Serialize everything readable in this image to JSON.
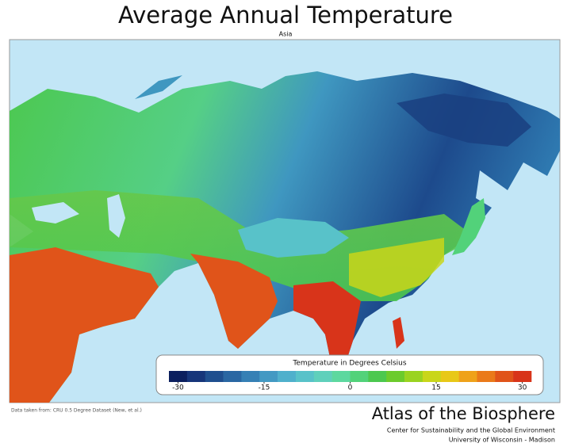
{
  "header": {
    "title": "Average Annual Temperature",
    "subtitle": "Asia"
  },
  "legend": {
    "title": "Temperature in Degrees Celsius",
    "ticks": [
      -30,
      -15,
      0,
      15,
      30
    ],
    "colors": [
      "#0b1f5e",
      "#16357a",
      "#1f4f8f",
      "#2a67a3",
      "#3680b5",
      "#4399c3",
      "#4fb0cc",
      "#58c2c9",
      "#5fd0bb",
      "#5dd89f",
      "#52d27a",
      "#4cc84f",
      "#6ccb2c",
      "#9ad320",
      "#c9d61a",
      "#e8c818",
      "#efa21a",
      "#ea7a1a",
      "#e0541a",
      "#d8341a"
    ]
  },
  "footer": {
    "source": "Data taken from: CRU 0.5 Degree Dataset (New, et al.)",
    "atlas": "Atlas of the Biosphere",
    "center": "Center for Sustainability and the Global Environment",
    "university": "University of Wisconsin - Madison"
  }
}
